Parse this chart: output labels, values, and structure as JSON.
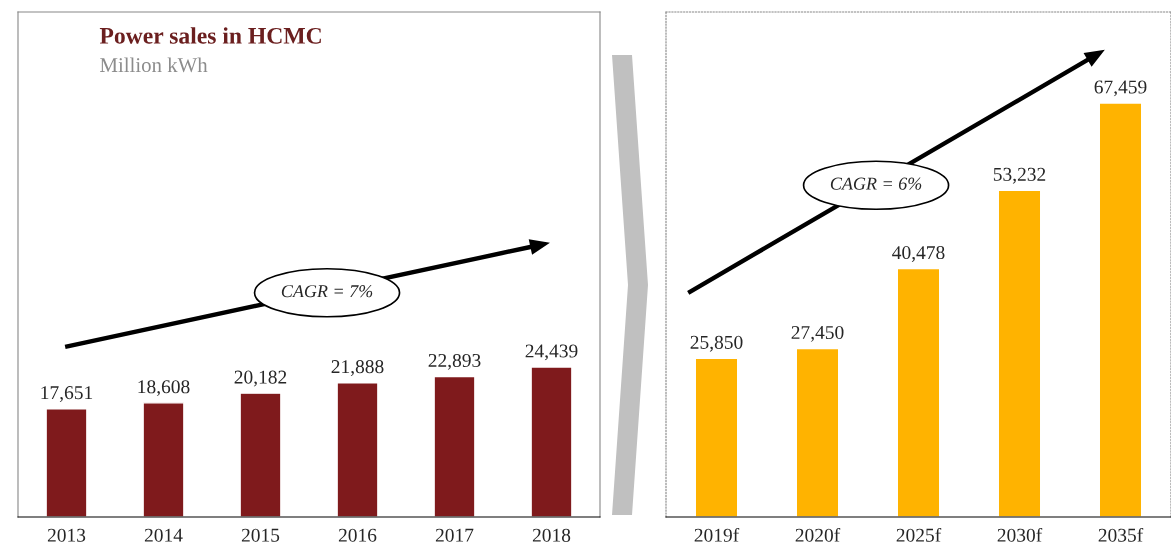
{
  "chart_data": [
    {
      "type": "bar",
      "title": "Power sales in HCMC",
      "subtitle": "Million kWh",
      "categories": [
        "2013",
        "2014",
        "2015",
        "2016",
        "2017",
        "2018"
      ],
      "values": [
        17651,
        18608,
        20182,
        21888,
        22893,
        24439
      ],
      "color": "#7f1a1c",
      "value_labels": [
        "17,651",
        "18,608",
        "20,182",
        "21,888",
        "22,893",
        "24,439"
      ],
      "tick_labels": "x",
      "annotations": [
        "CAGR = 7%"
      ]
    },
    {
      "type": "bar",
      "categories": [
        "2019f",
        "2020f",
        "2025f",
        "2030f",
        "2035f"
      ],
      "values": [
        25850,
        27450,
        40478,
        53232,
        67459
      ],
      "color": "#ffb300",
      "value_labels": [
        "25,850",
        "27,450",
        "40,478",
        "53,232",
        "67,459"
      ],
      "tick_labels": "x",
      "annotations": [
        "CAGR = 6%"
      ]
    }
  ]
}
